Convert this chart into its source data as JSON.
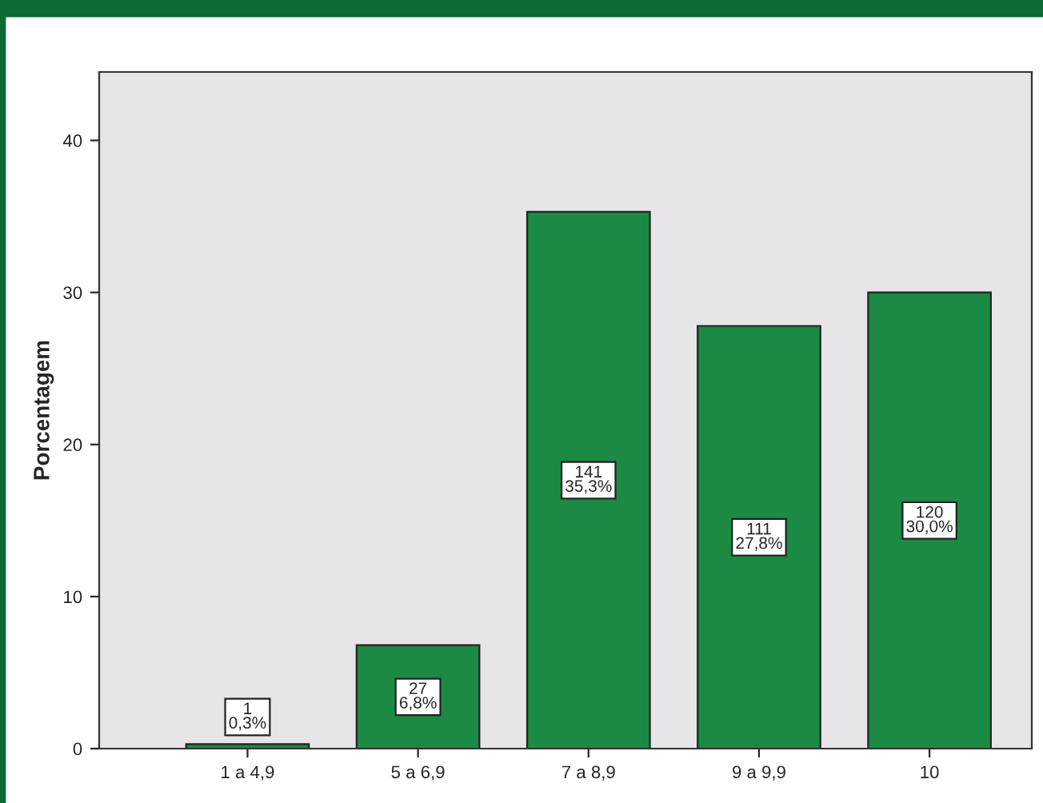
{
  "chart_data": {
    "type": "bar",
    "ylabel": "Porcentagem",
    "categories": [
      "1 a 4,9",
      "5 a 6,9",
      "7 a 8,9",
      "9 a 9,9",
      "10"
    ],
    "values": [
      0.3,
      6.8,
      35.3,
      27.8,
      30.0
    ],
    "value_labels": [
      "1\n0,3%",
      "27\n6,8%",
      "141\n35,3%",
      "111\n27,8%",
      "120\n30,0%"
    ],
    "color": "#1a8a45",
    "ylim": [
      0,
      44.5
    ],
    "yticks": [
      0,
      10,
      20,
      30,
      40
    ],
    "grid": false
  }
}
